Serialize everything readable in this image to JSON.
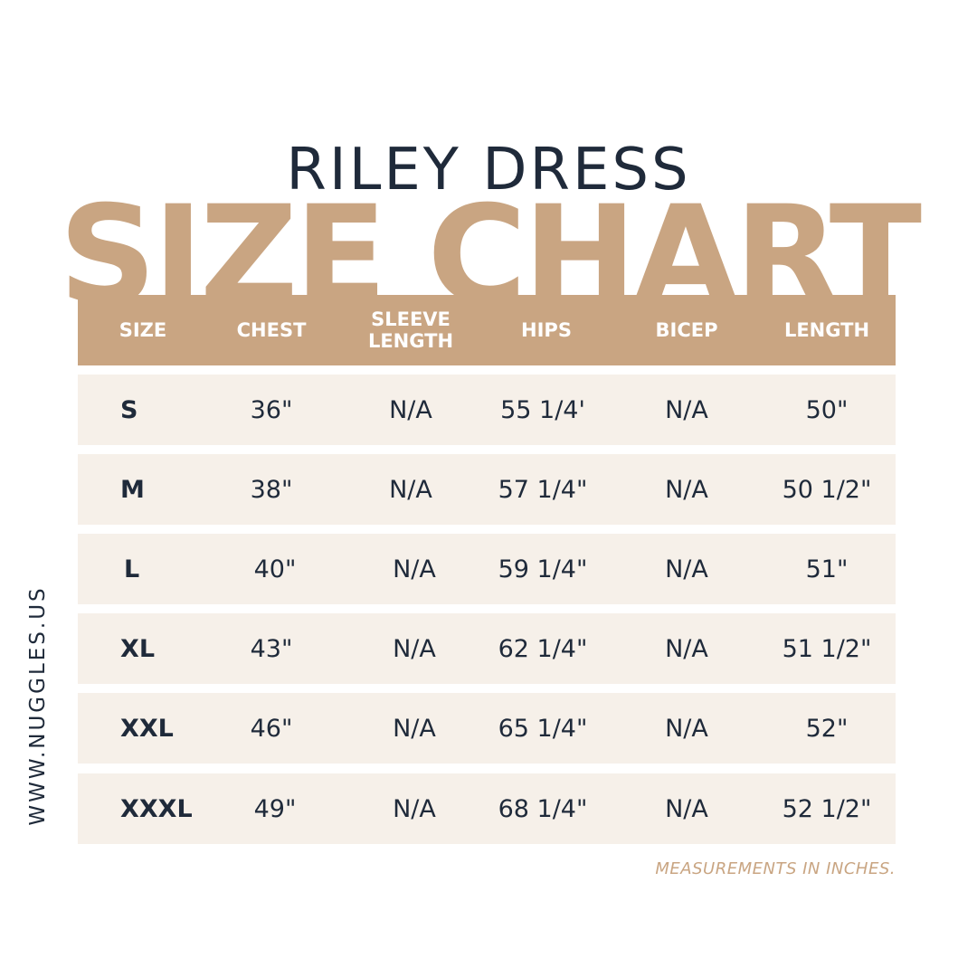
{
  "title": "RILEY DRESS",
  "big_title": "SIZE CHART",
  "website": "WWW.NUGGLES.US",
  "note": "MEASUREMENTS IN INCHES.",
  "colors": {
    "accent": "#c9a582",
    "dark": "#1f2a3a",
    "row_bg": "#f6f0e9"
  },
  "chart_data": {
    "type": "table",
    "columns": [
      "SIZE",
      "CHEST",
      "SLEEVE LENGTH",
      "HIPS",
      "BICEP",
      "LENGTH"
    ],
    "rows": [
      [
        "S",
        "36\"",
        "N/A",
        "55 1/4'",
        "N/A",
        "50\""
      ],
      [
        "M",
        "38\"",
        "N/A",
        "57 1/4\"",
        "N/A",
        "50 1/2\""
      ],
      [
        "L",
        "40\"",
        "N/A",
        "59 1/4\"",
        "N/A",
        "51\""
      ],
      [
        "XL",
        "43\"",
        "N/A",
        "62 1/4\"",
        "N/A",
        "51 1/2\""
      ],
      [
        "XXL",
        "46\"",
        "N/A",
        "65 1/4\"",
        "N/A",
        "52\""
      ],
      [
        "XXXL",
        "49\"",
        "N/A",
        "68 1/4\"",
        "N/A",
        "52 1/2\""
      ]
    ]
  }
}
